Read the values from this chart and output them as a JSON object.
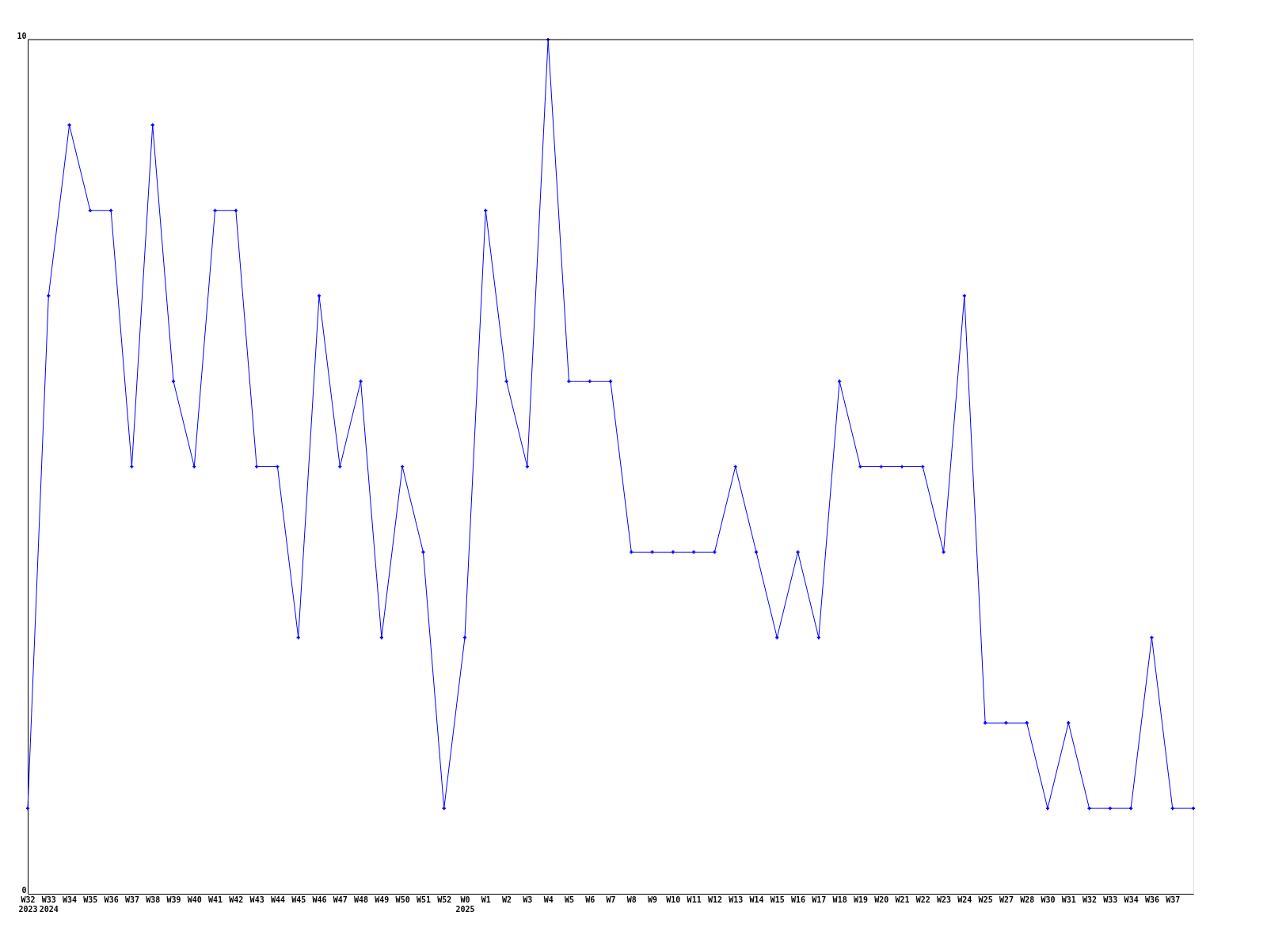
{
  "chart_data": {
    "type": "line",
    "categories": [
      "W32\n2023",
      "W33\n2024",
      "W34",
      "W35",
      "W36",
      "W37",
      "W38",
      "W39",
      "W40",
      "W41",
      "W42",
      "W43",
      "W44",
      "W45",
      "W46",
      "W47",
      "W48",
      "W49",
      "W50",
      "W51",
      "W52",
      "W0\n2025",
      "W1",
      "W2",
      "W3",
      "W4",
      "W5",
      "W6",
      "W7",
      "W8",
      "W9",
      "W10",
      "W11",
      "W12",
      "W13",
      "W14",
      "W15",
      "W16",
      "W17",
      "W18",
      "W19",
      "W20",
      "W21",
      "W22",
      "W23",
      "W24",
      "W25",
      "W27",
      "W28",
      "W30",
      "W31",
      "W32",
      "W33",
      "W34",
      "W36",
      "W37",
      null
    ],
    "series": [
      {
        "color": "#0000ff",
        "values": [
          1,
          7,
          9,
          8,
          8,
          5,
          9,
          6,
          5,
          8,
          8,
          5,
          5,
          3,
          7,
          5,
          6,
          3,
          5,
          4,
          1,
          3,
          8,
          6,
          5,
          10,
          6,
          6,
          6,
          4,
          4,
          4,
          4,
          4,
          5,
          4,
          3,
          4,
          3,
          6,
          5,
          5,
          5,
          5,
          4,
          7,
          2,
          2,
          2,
          1,
          2,
          1,
          1,
          1,
          3,
          1,
          1
        ]
      }
    ],
    "ylim": [
      0,
      10
    ],
    "yticks": [
      0,
      10
    ],
    "grid": false,
    "marker": "cross",
    "line_style": "solid"
  }
}
